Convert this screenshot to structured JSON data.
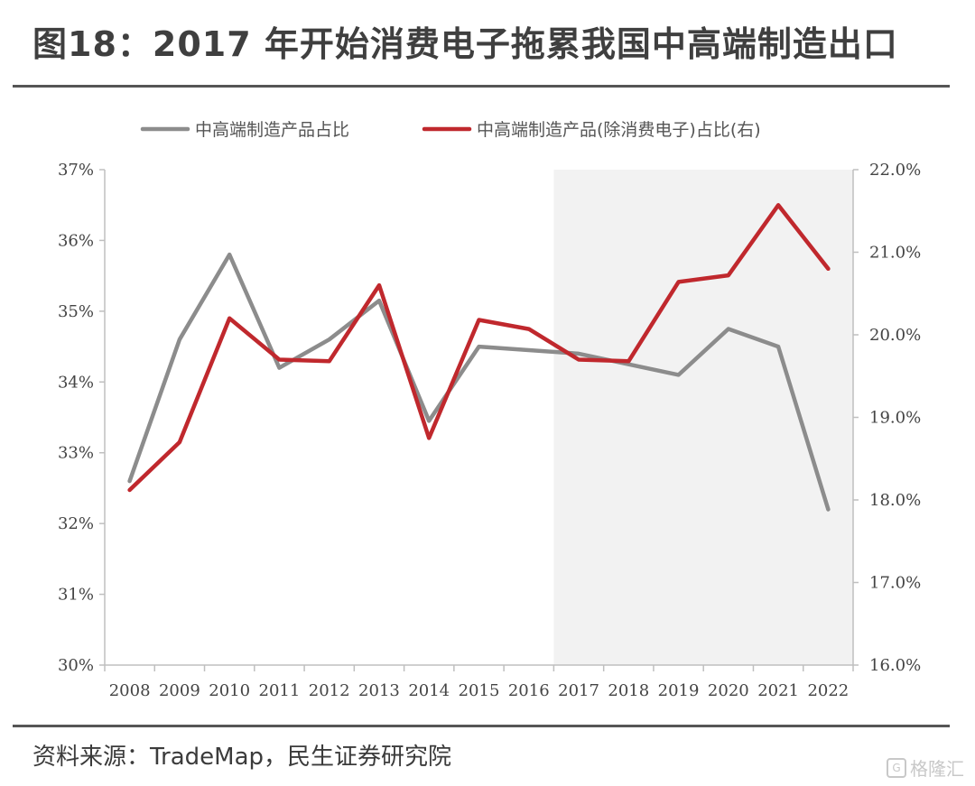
{
  "header": {
    "title": "图18：2017 年开始消费电子拖累我国中高端制造出口"
  },
  "footer": {
    "source": "资料来源：TradeMap，民生证券研究院",
    "watermark": "格隆汇"
  },
  "chart_data": {
    "type": "line",
    "categories": [
      "2008",
      "2009",
      "2010",
      "2011",
      "2012",
      "2013",
      "2014",
      "2015",
      "2016",
      "2017",
      "2018",
      "2019",
      "2020",
      "2021",
      "2022"
    ],
    "series": [
      {
        "name": "中高端制造产品占比",
        "axis": "left",
        "color": "#8c8c8c",
        "values": [
          32.6,
          34.6,
          35.8,
          34.2,
          34.6,
          35.15,
          33.45,
          34.5,
          34.45,
          34.4,
          34.25,
          34.1,
          34.75,
          34.5,
          32.2
        ]
      },
      {
        "name": "中高端制造产品(除消费电子)占比(右)",
        "axis": "right",
        "color": "#c0282d",
        "values": [
          18.12,
          18.7,
          20.2,
          19.7,
          19.68,
          20.6,
          18.75,
          20.18,
          20.07,
          19.7,
          19.68,
          20.64,
          20.72,
          21.57,
          20.8
        ]
      }
    ],
    "y_left": {
      "min": 30,
      "max": 37,
      "ticks": [
        "30%",
        "31%",
        "32%",
        "33%",
        "34%",
        "35%",
        "36%",
        "37%"
      ]
    },
    "y_right": {
      "min": 16,
      "max": 22,
      "ticks": [
        "16.0%",
        "17.0%",
        "18.0%",
        "19.0%",
        "20.0%",
        "21.0%",
        "22.0%"
      ]
    },
    "shaded_range": [
      "2017",
      "2022"
    ],
    "shade_color": "#f2f2f2",
    "legend": "top",
    "grid": false
  }
}
